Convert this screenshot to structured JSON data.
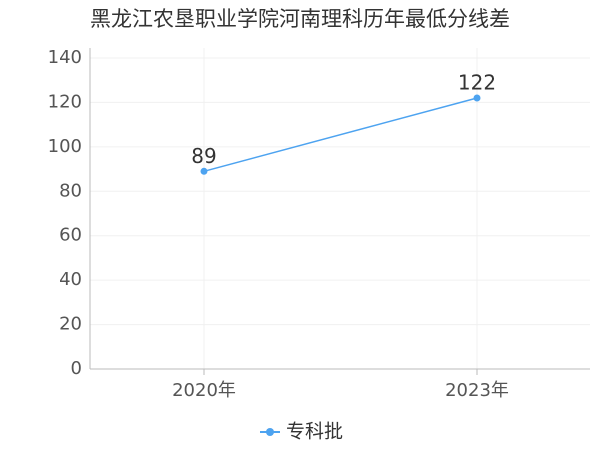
{
  "chart_data": {
    "type": "line",
    "title": "黑龙江农垦职业学院河南理科历年最低分线差",
    "categories": [
      "2020年",
      "2023年"
    ],
    "series": [
      {
        "name": "专科批",
        "color": "#4da3f0",
        "values": [
          89,
          122
        ]
      }
    ],
    "ylim": [
      0,
      140
    ],
    "yticks": [
      0,
      20,
      40,
      60,
      80,
      100,
      120,
      140
    ],
    "grid": true,
    "legend": "bottom"
  }
}
